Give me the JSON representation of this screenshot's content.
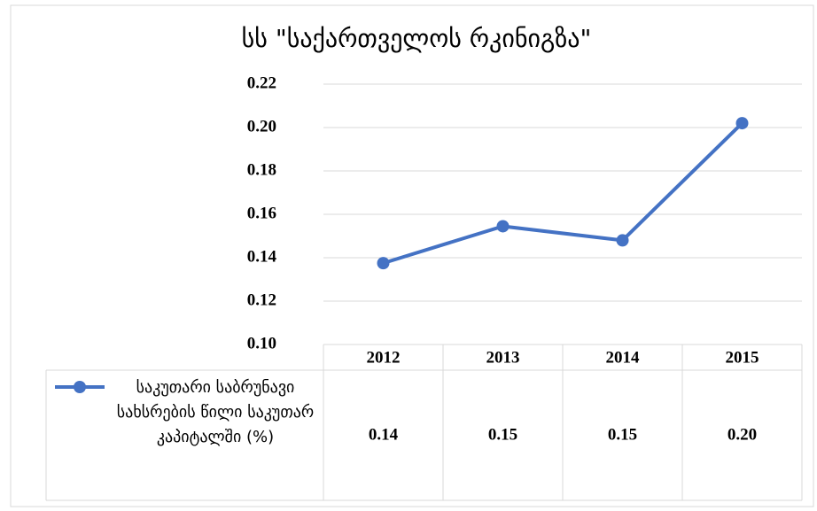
{
  "chart_data": {
    "type": "line",
    "title": "სს \"საქართველოს რკინიგზა\"",
    "categories": [
      "2012",
      "2013",
      "2014",
      "2015"
    ],
    "series": [
      {
        "name": "საკუთარი საბრუნავი სახსრების წილი საკუთარ კაპიტალში (%)",
        "color": "#4472c4",
        "values": [
          0.1375,
          0.1545,
          0.148,
          0.202
        ],
        "value_labels": [
          "0.14",
          "0.15",
          "0.15",
          "0.20"
        ]
      }
    ],
    "ylim": [
      0.1,
      0.22
    ],
    "yticks": [
      {
        "value": 0.1,
        "label": "0.10"
      },
      0.12,
      0.14,
      0.16,
      0.18,
      {
        "value": 0.2,
        "label": "0.20"
      },
      0.22
    ],
    "grid": true
  }
}
